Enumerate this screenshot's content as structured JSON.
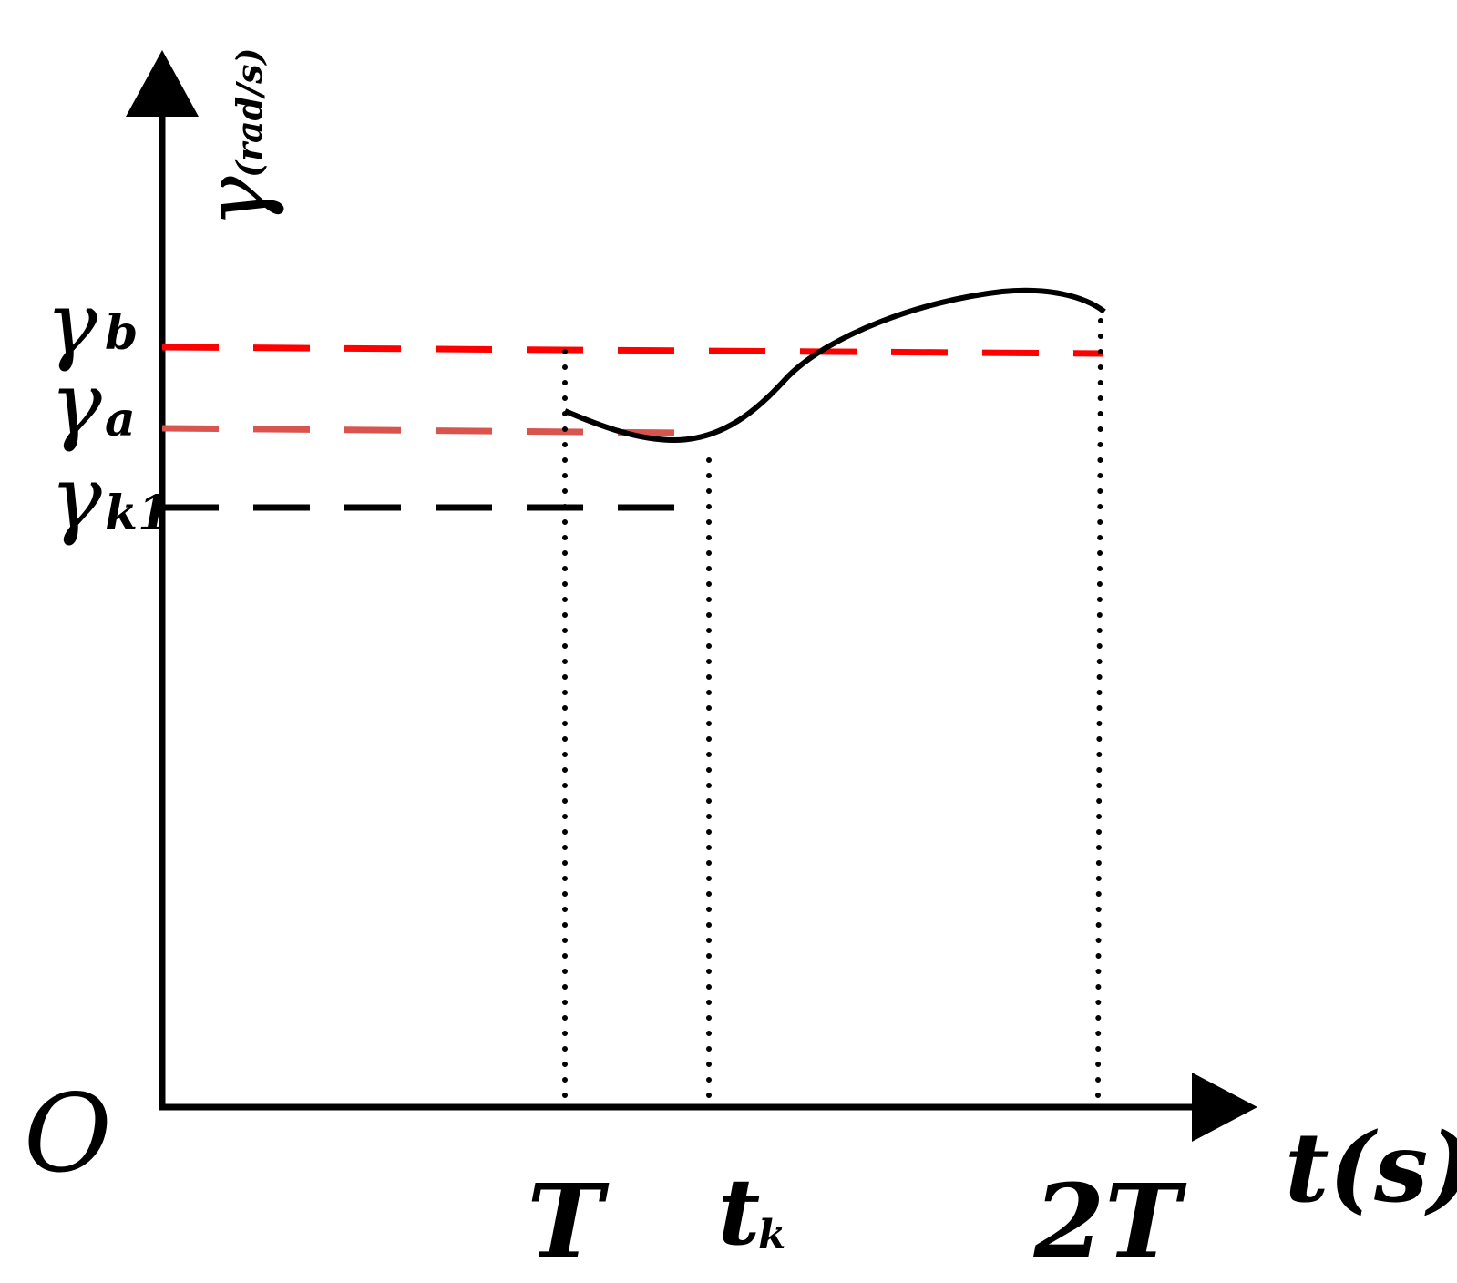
{
  "origin_label": "O",
  "y_axis": {
    "symbol": "γ",
    "unit": "(rad/s)"
  },
  "x_axis": {
    "label": "t(s)"
  },
  "levels": [
    {
      "id": "gamma_b",
      "symbol": "γ",
      "subscript": "b",
      "color": "#ff0000"
    },
    {
      "id": "gamma_a",
      "symbol": "γ",
      "subscript": "a",
      "color": "#d9534f"
    },
    {
      "id": "gamma_k1",
      "symbol": "γ",
      "subscript": "k1",
      "color": "#000000"
    }
  ],
  "time_marks": [
    {
      "id": "T",
      "main": "T",
      "sub": ""
    },
    {
      "id": "t_k",
      "main": "t",
      "sub": "k"
    },
    {
      "id": "2T",
      "main": "2T",
      "sub": ""
    }
  ],
  "colors": {
    "axis": "#000000",
    "curve": "#000000"
  }
}
